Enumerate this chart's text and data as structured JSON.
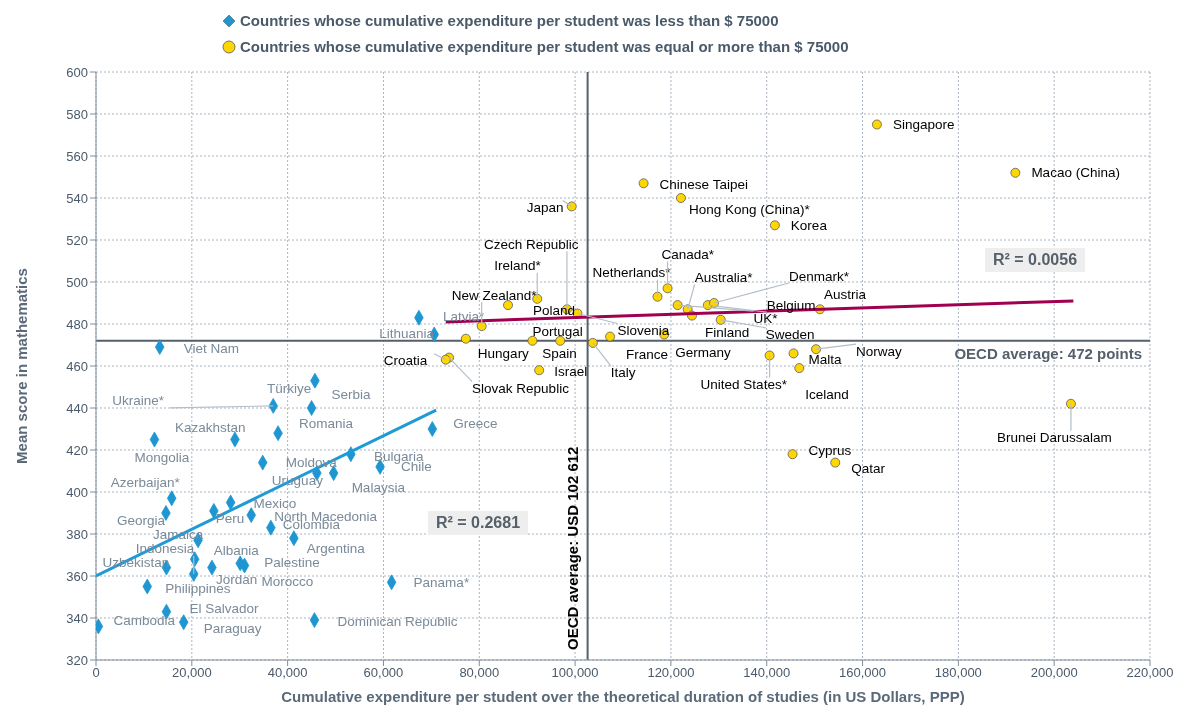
{
  "chart_data": {
    "type": "scatter",
    "xlabel": "Cumulative expenditure per student over the theoretical duration of studies (in US Dollars, PPP)",
    "ylabel": "Mean score in mathematics",
    "xlim": [
      0,
      220000
    ],
    "xticks": [
      0,
      {
        "value": 20000,
        "label": "20,000"
      },
      {
        "value": 40000,
        "label": "40,000"
      },
      {
        "value": 60000,
        "label": "60,000"
      },
      {
        "value": 80000,
        "label": "80,000"
      },
      {
        "value": 100000,
        "label": "100,000"
      },
      {
        "value": 120000,
        "label": "120,000"
      },
      {
        "value": 140000,
        "label": "140,000"
      },
      {
        "value": 160000,
        "label": "160,000"
      },
      {
        "value": 180000,
        "label": "180,000"
      },
      {
        "value": 200000,
        "label": "200,000"
      },
      {
        "value": 220000,
        "label": "220,000"
      }
    ],
    "ylim": [
      320,
      600
    ],
    "yticks": [
      320,
      340,
      360,
      380,
      400,
      420,
      440,
      460,
      480,
      500,
      520,
      540,
      560,
      580,
      600
    ],
    "grid": true,
    "legend": "top",
    "series": [
      {
        "name": "Countries whose cumulative expenditure per student was less than $ 75000",
        "color": "#1e96d2",
        "marker": "diamond",
        "x": [
          13300,
          45700,
          37000,
          45000,
          29000,
          38000,
          12200,
          70200,
          34800,
          46100,
          49600,
          53200,
          59300,
          15800,
          28100,
          14600,
          24600,
          32400,
          36500,
          41300,
          21300,
          20400,
          14700,
          20600,
          24200,
          30100,
          61700,
          14700,
          18300,
          500,
          45600,
          67400,
          70600,
          10700,
          31000
        ],
        "values": [
          469,
          453,
          441,
          440,
          425,
          428,
          425,
          430,
          414,
          409,
          409,
          418,
          412,
          397,
          395,
          390,
          391,
          389,
          383,
          378,
          377,
          361,
          364,
          368,
          364,
          366,
          357,
          343,
          338,
          336,
          339,
          483,
          475,
          355,
          365
        ]
      },
      {
        "name": "Countries whose cumulative expenditure per student was equal or more than $ 75000",
        "color": "#ffd700",
        "marker": "circle",
        "x": [
          99300,
          163000,
          191900,
          114300,
          122100,
          141700,
          117200,
          119300,
          121400,
          123500,
          124400,
          127700,
          130400,
          151100,
          150300,
          140600,
          145600,
          146800,
          203500,
          145400,
          154300,
          92100,
          98300,
          86000,
          100500,
          80500,
          77200,
          73700,
          91100,
          96900,
          103700,
          92500,
          107300,
          118600,
          129000,
          73000
        ],
        "values": [
          536,
          575,
          552,
          547,
          540,
          527,
          493,
          497,
          489,
          487,
          484,
          489,
          482,
          487,
          468,
          465,
          466,
          459,
          442,
          418,
          414,
          492,
          487,
          489,
          485,
          479,
          473,
          464,
          472,
          472,
          471,
          458,
          474,
          475,
          490,
          463
        ]
      },
      {
        "type": "line",
        "color": "#1e9ad6",
        "x": [
          0,
          71000
        ],
        "values": [
          360,
          439
        ]
      },
      {
        "type": "line",
        "color": "#a0004f",
        "x": [
          73000,
          204000
        ],
        "values": [
          481,
          491
        ]
      }
    ],
    "ref_lines": [
      {
        "axis": "y",
        "value": 472,
        "label": "OECD average: 472 points"
      },
      {
        "axis": "x",
        "value": 102612,
        "label": "OECD average: USD 102 612"
      }
    ],
    "annotations": [
      {
        "text": "Viet Nam",
        "x": 13300,
        "y": 469
      },
      {
        "text": "Türkiye",
        "x": 45700,
        "y": 453
      },
      {
        "text": "Ukraine*",
        "x": 37000,
        "y": 441
      },
      {
        "text": "Serbia",
        "x": 45000,
        "y": 440
      },
      {
        "text": "Kazakhstan",
        "x": 29000,
        "y": 425
      },
      {
        "text": "Romania",
        "x": 38000,
        "y": 428
      },
      {
        "text": "Mongolia",
        "x": 12200,
        "y": 425
      },
      {
        "text": "Greece",
        "x": 70200,
        "y": 430
      },
      {
        "text": "Moldova",
        "x": 34800,
        "y": 414
      },
      {
        "text": "Uruguay",
        "x": 46100,
        "y": 409
      },
      {
        "text": "Malaysia",
        "x": 49600,
        "y": 409
      },
      {
        "text": "Bulgaria",
        "x": 53200,
        "y": 418
      },
      {
        "text": "Chile",
        "x": 59300,
        "y": 412
      },
      {
        "text": "Azerbaijan*",
        "x": 15800,
        "y": 397
      },
      {
        "text": "Mexico",
        "x": 28100,
        "y": 395
      },
      {
        "text": "Georgia",
        "x": 14600,
        "y": 390
      },
      {
        "text": "Peru",
        "x": 24600,
        "y": 391
      },
      {
        "text": "North Macedonia",
        "x": 32400,
        "y": 389
      },
      {
        "text": "Colombia",
        "x": 36500,
        "y": 383
      },
      {
        "text": "Argentina",
        "x": 41300,
        "y": 378
      },
      {
        "text": "Jamaica",
        "x": 21300,
        "y": 377
      },
      {
        "text": "Indonesia",
        "x": 20400,
        "y": 361
      },
      {
        "text": "Uzbekistan",
        "x": 14700,
        "y": 364
      },
      {
        "text": "Albania",
        "x": 20600,
        "y": 368
      },
      {
        "text": "Jordan",
        "x": 24200,
        "y": 364
      },
      {
        "text": "Palestine",
        "x": 30100,
        "y": 366
      },
      {
        "text": "Panama*",
        "x": 61700,
        "y": 357
      },
      {
        "text": "El Salvador",
        "x": 14700,
        "y": 343
      },
      {
        "text": "Paraguay",
        "x": 18300,
        "y": 338
      },
      {
        "text": "Cambodia",
        "x": 500,
        "y": 336
      },
      {
        "text": "Dominican Republic",
        "x": 45600,
        "y": 339
      },
      {
        "text": "Latvia*",
        "x": 67400,
        "y": 483
      },
      {
        "text": "Lithuania",
        "x": 70600,
        "y": 475
      },
      {
        "text": "Philippines",
        "x": 10700,
        "y": 355
      },
      {
        "text": "Japan",
        "x": 99300,
        "y": 536
      },
      {
        "text": "Singapore",
        "x": 163000,
        "y": 575
      },
      {
        "text": "Macao (China)",
        "x": 191900,
        "y": 552
      },
      {
        "text": "Chinese Taipei",
        "x": 114300,
        "y": 547
      },
      {
        "text": "Hong Kong (China)*",
        "x": 122100,
        "y": 540
      },
      {
        "text": "Korea",
        "x": 141700,
        "y": 527
      },
      {
        "text": "Netherlands*",
        "x": 117200,
        "y": 493
      },
      {
        "text": "Canada*",
        "x": 119300,
        "y": 497
      },
      {
        "text": "UK*",
        "x": 121400,
        "y": 489
      },
      {
        "text": "Australia*",
        "x": 123500,
        "y": 487
      },
      {
        "text": "Finland",
        "x": 124400,
        "y": 484
      },
      {
        "text": "Belgium",
        "x": 127700,
        "y": 489
      },
      {
        "text": "Sweden",
        "x": 130400,
        "y": 482
      },
      {
        "text": "Austria",
        "x": 151100,
        "y": 487
      },
      {
        "text": "Norway",
        "x": 150300,
        "y": 468
      },
      {
        "text": "United States*",
        "x": 140600,
        "y": 465
      },
      {
        "text": "Malta",
        "x": 145600,
        "y": 466
      },
      {
        "text": "Iceland",
        "x": 146800,
        "y": 459
      },
      {
        "text": "Brunei Darussalam",
        "x": 203500,
        "y": 442
      },
      {
        "text": "Cyprus",
        "x": 145400,
        "y": 418
      },
      {
        "text": "Qatar",
        "x": 154300,
        "y": 414
      },
      {
        "text": "Ireland*",
        "x": 92100,
        "y": 492
      },
      {
        "text": "Czech Republic",
        "x": 98300,
        "y": 487
      },
      {
        "text": "Poland",
        "x": 86000,
        "y": 489
      },
      {
        "text": "Slovenia",
        "x": 100500,
        "y": 485
      },
      {
        "text": "New Zealand*",
        "x": 80500,
        "y": 479
      },
      {
        "text": "Hungary",
        "x": 77200,
        "y": 473
      },
      {
        "text": "Slovak Republic",
        "x": 73700,
        "y": 464
      },
      {
        "text": "Portugal",
        "x": 91100,
        "y": 472
      },
      {
        "text": "Spain",
        "x": 96900,
        "y": 472
      },
      {
        "text": "Italy",
        "x": 103700,
        "y": 471
      },
      {
        "text": "Israel",
        "x": 92500,
        "y": 458
      },
      {
        "text": "France",
        "x": 107300,
        "y": 474
      },
      {
        "text": "Germany",
        "x": 118600,
        "y": 475
      },
      {
        "text": "Denmark*",
        "x": 129000,
        "y": 490
      },
      {
        "text": "Croatia",
        "x": 73000,
        "y": 463
      },
      {
        "text": "Morocco",
        "x": 31000,
        "y": 365
      },
      "R² = 0.2681",
      "R² = 0.0056"
    ]
  }
}
